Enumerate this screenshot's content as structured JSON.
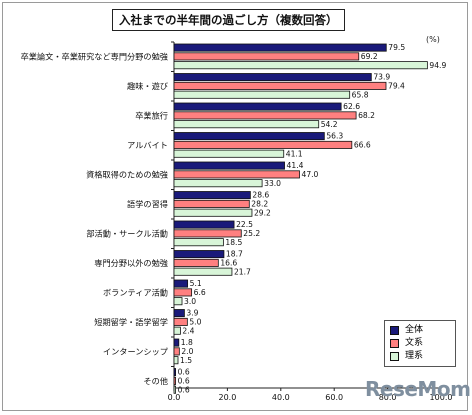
{
  "title": "入社までの半年間の過ごし方（複数回答）",
  "unit": "(%)",
  "watermark": "ReseMom",
  "chart_data": {
    "type": "bar",
    "orientation": "horizontal",
    "title": "入社までの半年間の過ごし方（複数回答）",
    "categories": [
      "卒業論文・卒業研究など専門分野の勉強",
      "趣味・遊び",
      "卒業旅行",
      "アルバイト",
      "資格取得のための勉強",
      "語学の習得",
      "部活動・サークル活動",
      "専門分野以外の勉強",
      "ボランティア活動",
      "短期留学・語学留学",
      "インターンシップ",
      "その他"
    ],
    "series": [
      {
        "name": "全体",
        "color": "#1a1a7a",
        "values": [
          79.5,
          73.9,
          62.6,
          56.3,
          41.4,
          28.6,
          22.5,
          18.7,
          5.1,
          3.9,
          1.8,
          0.6
        ]
      },
      {
        "name": "文系",
        "color": "#ff8080",
        "values": [
          69.2,
          79.4,
          68.2,
          66.6,
          47.0,
          28.2,
          25.2,
          16.6,
          6.6,
          5.0,
          2.0,
          0.6
        ]
      },
      {
        "name": "理系",
        "color": "#d8f5d8",
        "values": [
          94.9,
          65.8,
          54.2,
          41.1,
          33.0,
          29.2,
          18.5,
          21.7,
          3.0,
          2.4,
          1.5,
          0.6
        ]
      }
    ],
    "xlim": [
      0,
      100
    ],
    "x_ticks": [
      "0.0",
      "20.0",
      "40.0",
      "60.0",
      "80.0",
      "100.0"
    ],
    "grid": false,
    "legend_position": "bottom-right"
  }
}
